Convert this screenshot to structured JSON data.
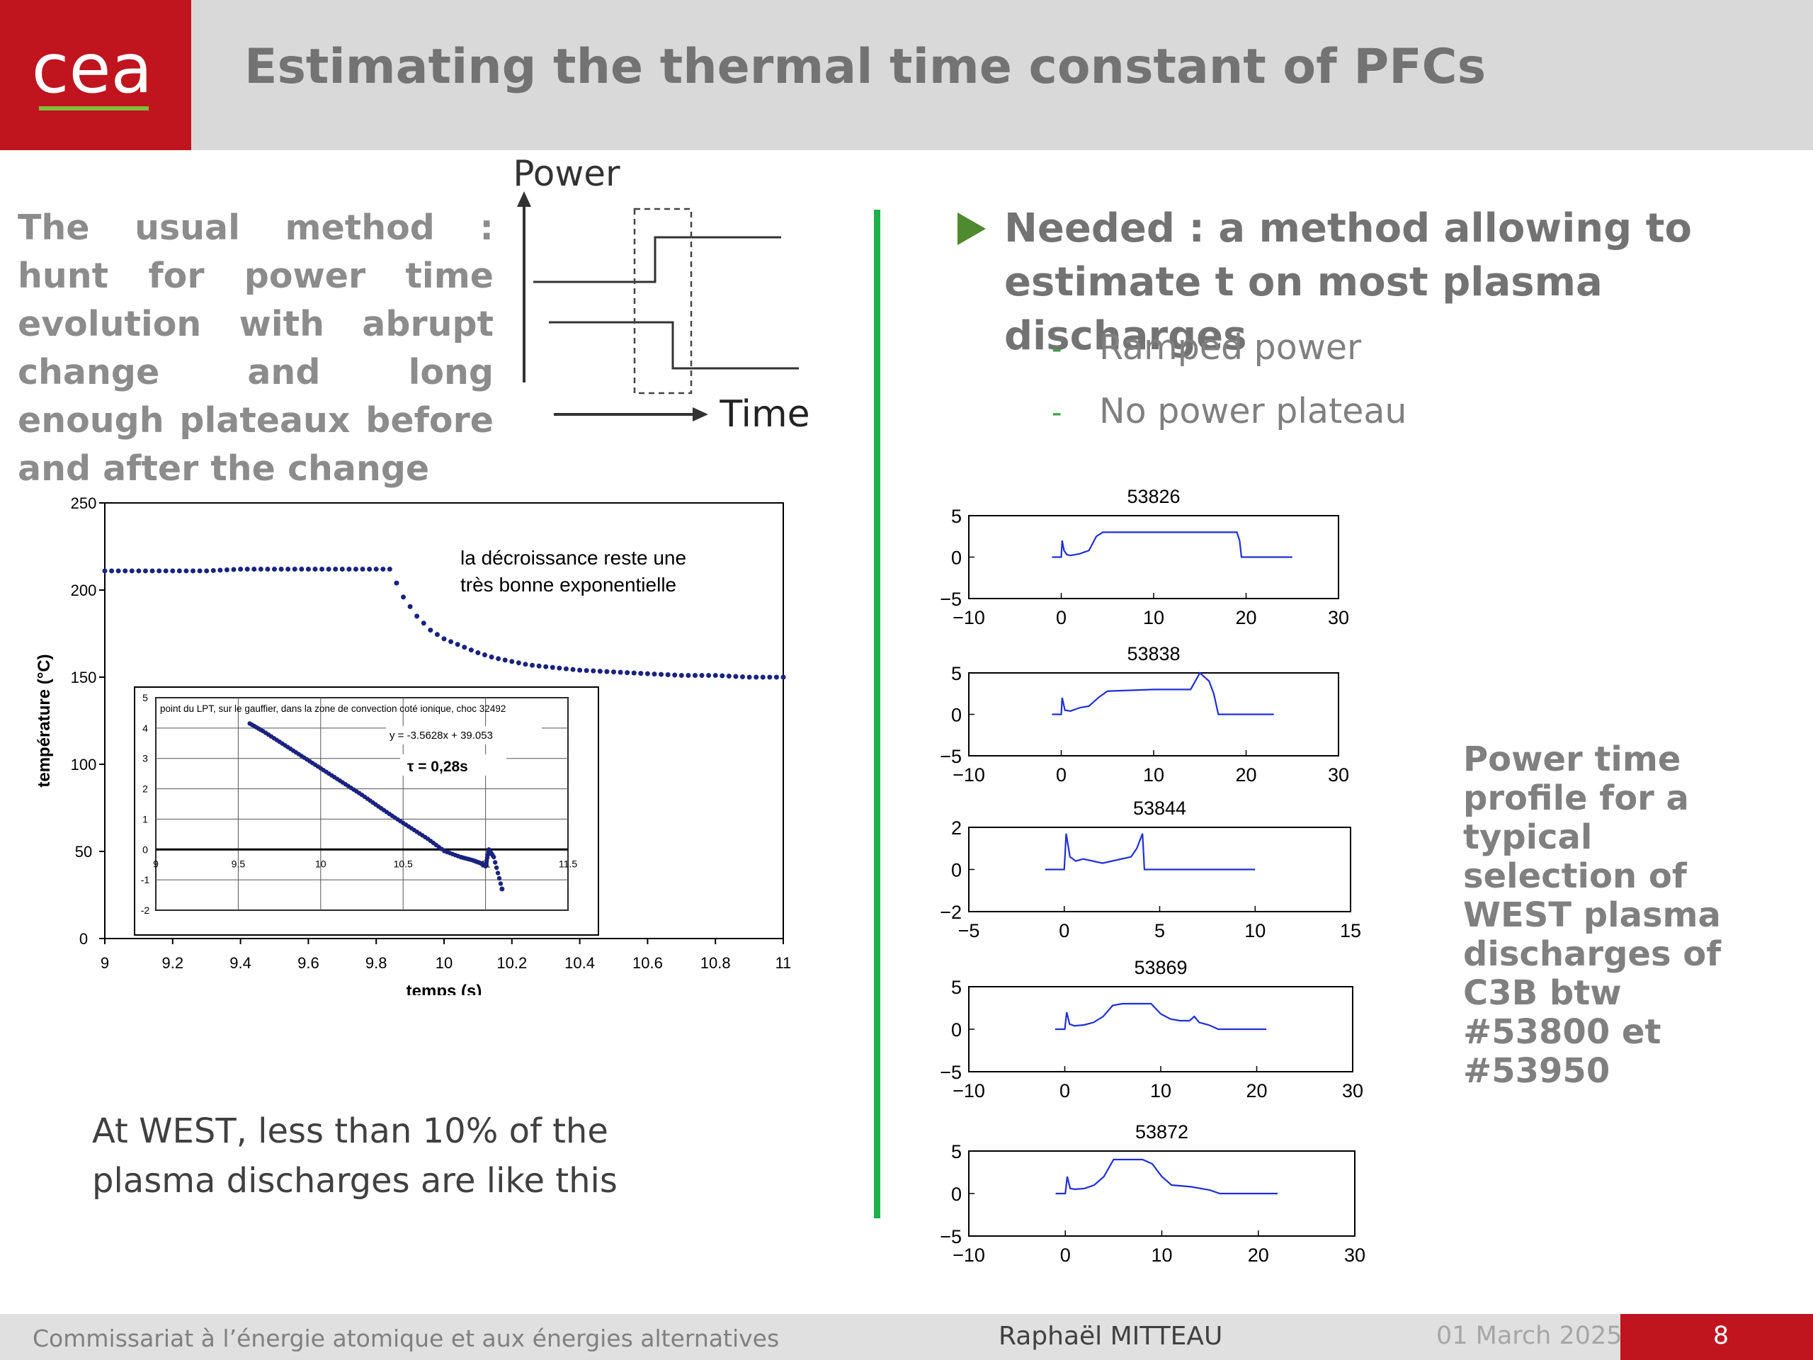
{
  "header": {
    "title": "Estimating the thermal time constant of PFCs",
    "logo_text": "cea"
  },
  "left": {
    "usual_method": "The usual method : hunt for power time evolution with abrupt change and long enough plateaux before and after the change",
    "schematic": {
      "power_label": "Power",
      "time_label": "Time"
    },
    "west_note": "At WEST, less than 10% of the plasma discharges are like this"
  },
  "right": {
    "needed": "Needed : a method allowing to estimate t on most plasma discharges",
    "items": [
      "Ramped power",
      "No power plateau"
    ],
    "caption": "Power time profile for a typical selection of WEST plasma discharges of C3B btw #53800 et #53950"
  },
  "footer": {
    "org": "Commissariat à l’énergie atomique et aux énergies alternatives",
    "author": "Raphaël MITTEAU",
    "date": "01 March 2025",
    "page": "8"
  },
  "colors": {
    "cea_red": "#c0141f",
    "divider_green": "#1cb14a",
    "header_gray": "#d9d9d9",
    "bullet_green": "#4e8a2e"
  },
  "chart_data": [
    {
      "type": "scatter",
      "xlabel": "temps (s)",
      "ylabel": "température (°C)",
      "xlim": [
        9,
        11
      ],
      "ylim": [
        0,
        250
      ],
      "xticks": [
        "9",
        "9.2",
        "9.4",
        "9.6",
        "9.8",
        "10",
        "10.2",
        "10.4",
        "10.6",
        "10.8",
        "11"
      ],
      "yticks": [
        "0",
        "50",
        "100",
        "150",
        "200",
        "250"
      ],
      "annotation": "la décroissance reste une très bonne exponentielle",
      "series": [
        {
          "x": [
            9.0,
            9.1,
            9.2,
            9.3,
            9.4,
            9.5,
            9.6,
            9.7,
            9.8,
            9.84,
            9.88,
            9.92,
            9.96,
            10.0,
            10.05,
            10.1,
            10.15,
            10.2,
            10.25,
            10.3,
            10.35,
            10.4,
            10.5,
            10.6,
            10.7,
            10.8,
            10.9,
            11.0
          ],
          "y": [
            211,
            211,
            211,
            211,
            212,
            212,
            212,
            212,
            212,
            212,
            196,
            185,
            177,
            172,
            168,
            164,
            161,
            159,
            157,
            156,
            155,
            154,
            153,
            152,
            151,
            151,
            150,
            150
          ]
        }
      ],
      "inset": {
        "type": "scatter",
        "title": "point du LPT, sur le gauffier, dans la zone de convection coté ionique, choc 32492",
        "xlim": [
          9,
          11.5
        ],
        "ylim": [
          -2,
          5
        ],
        "xticks": [
          "9",
          "9.5",
          "10",
          "10.5",
          "11",
          "11.5"
        ],
        "yticks": [
          "-2",
          "-1",
          "0",
          "1",
          "2",
          "3",
          "4",
          "5"
        ],
        "fit_equation": "y = -3.5628x + 39.053",
        "tau_label": "τ = 0,28s",
        "series": [
          {
            "x": [
              9.57,
              9.65,
              9.75,
              9.85,
              9.95,
              10.05,
              10.15,
              10.25,
              10.35,
              10.45,
              10.55,
              10.65,
              10.75,
              10.85,
              10.92,
              10.97,
              11.0,
              11.02,
              11.05,
              11.1
            ],
            "y": [
              4.15,
              3.9,
              3.55,
              3.2,
              2.85,
              2.5,
              2.15,
              1.8,
              1.42,
              1.05,
              0.7,
              0.35,
              -0.05,
              -0.25,
              -0.35,
              -0.45,
              -0.55,
              0.0,
              -0.25,
              -1.3
            ]
          }
        ]
      }
    },
    {
      "type": "line",
      "title": "53826",
      "xlim": [
        -10,
        30
      ],
      "ylim": [
        -5,
        5
      ],
      "xticks": [
        "−10",
        "0",
        "10",
        "20",
        "30"
      ],
      "yticks": [
        "−5",
        "0",
        "5"
      ],
      "series": [
        {
          "x": [
            -1,
            0,
            0.1,
            0.3,
            0.6,
            1,
            2,
            3,
            3.8,
            4.5,
            5,
            10,
            15,
            19,
            19.3,
            19.5,
            25
          ],
          "y": [
            0,
            0,
            2,
            0.8,
            0.3,
            0.2,
            0.4,
            0.8,
            2.5,
            3,
            3,
            3,
            3,
            3,
            2,
            0,
            0
          ]
        }
      ]
    },
    {
      "type": "line",
      "title": "53838",
      "xlim": [
        -10,
        30
      ],
      "ylim": [
        -5,
        5
      ],
      "xticks": [
        "−10",
        "0",
        "10",
        "20",
        "30"
      ],
      "yticks": [
        "−5",
        "0",
        "5"
      ],
      "series": [
        {
          "x": [
            -1,
            0,
            0.1,
            0.4,
            1,
            2,
            3,
            4,
            5,
            10,
            14,
            14.5,
            15,
            15.5,
            16,
            16.5,
            17,
            23
          ],
          "y": [
            0,
            0,
            2,
            0.5,
            0.4,
            0.8,
            1,
            2,
            2.8,
            3,
            3,
            4,
            5,
            4.5,
            4,
            2.5,
            0,
            0
          ]
        }
      ]
    },
    {
      "type": "line",
      "title": "53844",
      "xlim": [
        -5,
        15
      ],
      "ylim": [
        -2,
        2
      ],
      "xticks": [
        "−5",
        "0",
        "5",
        "10",
        "15"
      ],
      "yticks": [
        "−2",
        "0",
        "2"
      ],
      "series": [
        {
          "x": [
            -1,
            0,
            0.1,
            0.3,
            0.6,
            1,
            2,
            3,
            3.5,
            3.8,
            4.1,
            4.2,
            5,
            10
          ],
          "y": [
            0,
            0,
            1.7,
            0.6,
            0.4,
            0.5,
            0.3,
            0.5,
            0.6,
            1,
            1.7,
            0,
            0,
            0
          ]
        }
      ]
    },
    {
      "type": "line",
      "title": "53869",
      "xlim": [
        -10,
        30
      ],
      "ylim": [
        -5,
        5
      ],
      "xticks": [
        "−10",
        "0",
        "10",
        "20",
        "30"
      ],
      "yticks": [
        "−5",
        "0",
        "5"
      ],
      "series": [
        {
          "x": [
            -1,
            0,
            0.2,
            0.5,
            1,
            2,
            3,
            4,
            5,
            6,
            8,
            9,
            10,
            11,
            12,
            13,
            13.5,
            14,
            15,
            16,
            21
          ],
          "y": [
            0,
            0,
            2,
            0.6,
            0.4,
            0.5,
            0.8,
            1.5,
            2.8,
            3,
            3,
            3,
            1.8,
            1.2,
            1,
            1,
            1.5,
            0.8,
            0.5,
            0,
            0
          ]
        }
      ]
    },
    {
      "type": "line",
      "title": "53872",
      "xlim": [
        -10,
        30
      ],
      "ylim": [
        -5,
        5
      ],
      "xticks": [
        "−10",
        "0",
        "10",
        "20",
        "30"
      ],
      "yticks": [
        "−5",
        "0",
        "5"
      ],
      "series": [
        {
          "x": [
            -1,
            0,
            0.2,
            0.5,
            1,
            2,
            3,
            4,
            5,
            8,
            9,
            10,
            11,
            13,
            15,
            16,
            22
          ],
          "y": [
            0,
            0,
            2,
            0.6,
            0.5,
            0.6,
            1,
            2,
            4,
            4,
            3.5,
            2,
            1,
            0.8,
            0.4,
            0,
            0
          ]
        }
      ]
    }
  ]
}
